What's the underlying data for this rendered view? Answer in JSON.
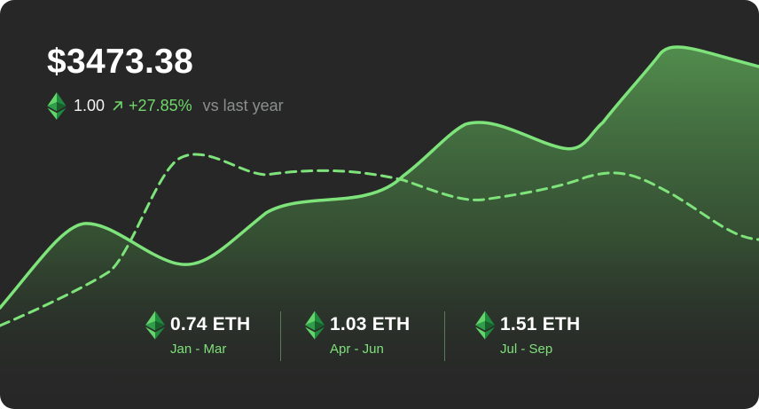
{
  "card": {
    "price": "$3473.38",
    "holdings": "1.00",
    "change_pct": "+27.85%",
    "comparison": "vs last year",
    "accent_color": "#7de37a",
    "background_color": "#272727",
    "icons": {
      "coin": "ethereum-icon",
      "trend": "arrow-up-right-icon"
    }
  },
  "stats": [
    {
      "value": "0.74 ETH",
      "period": "Jan - Mar"
    },
    {
      "value": "1.03 ETH",
      "period": "Apr - Jun"
    },
    {
      "value": "1.51 ETH",
      "period": "Jul - Sep"
    }
  ]
}
